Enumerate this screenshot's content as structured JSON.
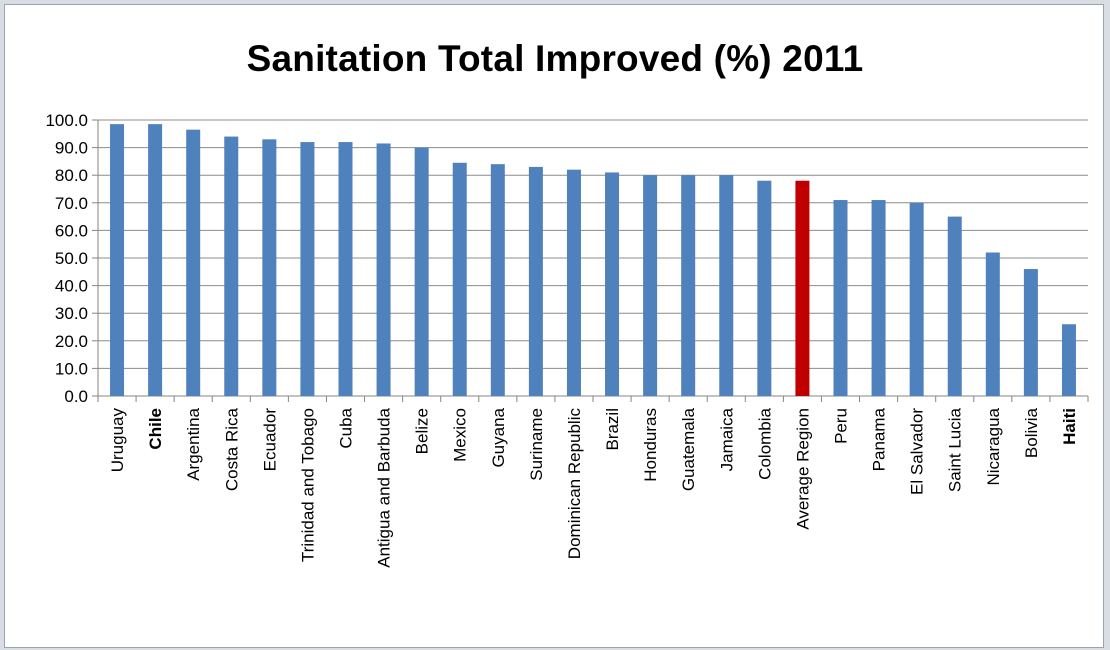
{
  "chart_data": {
    "type": "bar",
    "title": "Sanitation Total Improved (%) 2011",
    "xlabel": "",
    "ylabel": "",
    "ylim": [
      0,
      100
    ],
    "y_ticks": [
      "0.0",
      "10.0",
      "20.0",
      "30.0",
      "40.0",
      "50.0",
      "60.0",
      "70.0",
      "80.0",
      "90.0",
      "100.0"
    ],
    "grid": true,
    "legend": "none",
    "categories": [
      "Uruguay",
      "Chile",
      "Argentina",
      "Costa Rica",
      "Ecuador",
      "Trinidad and Tobago",
      "Cuba",
      "Antigua and Barbuda",
      "Belize",
      "Mexico",
      "Guyana",
      "Suriname",
      "Dominican Republic",
      "Brazil",
      "Honduras",
      "Guatemala",
      "Jamaica",
      "Colombia",
      "Average Region",
      "Peru",
      "Panama",
      "El Salvador",
      "Saint Lucia",
      "Nicaragua",
      "Bolivia",
      "Haiti"
    ],
    "values": [
      98.5,
      98.5,
      96.5,
      94,
      93,
      92,
      92,
      91.5,
      90,
      84.5,
      84,
      83,
      82,
      81,
      80,
      80,
      80,
      78,
      78,
      71,
      71,
      70,
      65,
      52,
      46,
      26
    ],
    "bold_categories": [
      "Chile",
      "Haiti"
    ],
    "colors": {
      "bar": "#4f81bd",
      "highlight_bar": "#c00000",
      "highlight_category": "Average Region",
      "grid": "#8c8c8c",
      "axis": "#868686"
    }
  }
}
